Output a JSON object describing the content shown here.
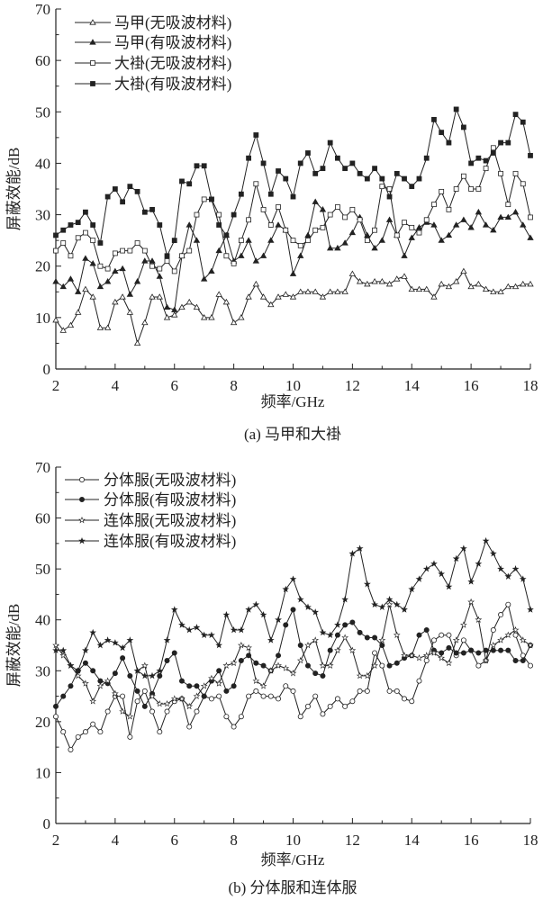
{
  "chart_data": [
    {
      "type": "line",
      "title": "(a) 马甲和大褂",
      "xlabel": "频率/GHz",
      "ylabel": "屏蔽效能/dB",
      "xlim": [
        2,
        18
      ],
      "ylim": [
        0,
        70
      ],
      "xticks": [
        "2",
        "4",
        "6",
        "8",
        "10",
        "12",
        "14",
        "16",
        "18"
      ],
      "yticks": [
        "0",
        "10",
        "20",
        "30",
        "40",
        "50",
        "60",
        "70"
      ],
      "x_spacing": "uniform 0.25 GHz from 2 to 18",
      "legend_position": "top-left",
      "series": [
        {
          "name": "马甲(无吸波材料)",
          "marker": "triangle-open",
          "values": [
            9.5,
            7.5,
            8.5,
            11,
            15.5,
            14,
            8,
            8,
            13,
            14,
            11,
            5,
            9,
            14,
            14,
            10,
            10.5,
            12,
            13,
            12,
            10,
            10,
            14.5,
            13,
            9,
            10,
            14,
            16.5,
            14,
            12.5,
            14,
            14.5,
            14,
            15,
            15,
            15,
            14,
            15,
            15,
            15,
            18.5,
            17,
            16.5,
            17,
            17,
            16.5,
            17.5,
            18,
            15.5,
            15.5,
            15.5,
            14,
            16.5,
            16,
            17,
            19,
            16,
            16.5,
            15.5,
            15,
            15,
            16,
            16,
            16.5,
            16.5
          ]
        },
        {
          "name": "马甲(有吸波材料)",
          "marker": "triangle-filled",
          "values": [
            17,
            16,
            17.5,
            15,
            21.5,
            20.5,
            16,
            17,
            19,
            19.5,
            14.5,
            17,
            21,
            21,
            18,
            12,
            11.5,
            22,
            28,
            25,
            17.5,
            19,
            23,
            26,
            21,
            22,
            25,
            21,
            22,
            25,
            28,
            27,
            18.5,
            22,
            26,
            32.5,
            31,
            23.5,
            23.5,
            24.5,
            26.5,
            29.5,
            26,
            23.5,
            25,
            29,
            26,
            22,
            25.5,
            27.5,
            28.5,
            28,
            25,
            26,
            28,
            29,
            27.5,
            30.5,
            28,
            27,
            29.5,
            29.5,
            30.5,
            28,
            25.5
          ]
        },
        {
          "name": "大褂(无吸波材料)",
          "marker": "square-open",
          "values": [
            23,
            24.5,
            22,
            25.5,
            26.5,
            25,
            20,
            19.5,
            22.5,
            23,
            23,
            24.5,
            23,
            20,
            19.5,
            21,
            19,
            22,
            23,
            30,
            33,
            33,
            30,
            22,
            20.5,
            25,
            29,
            36,
            31,
            28,
            31.5,
            27,
            25,
            24,
            25,
            27,
            27.5,
            30,
            31.5,
            29.5,
            31,
            29,
            25,
            27,
            35.5,
            35,
            26,
            28.5,
            27.5,
            26.5,
            29,
            32,
            34.5,
            31,
            35,
            37.5,
            35,
            35,
            39,
            43,
            38,
            32,
            38,
            36,
            29.5
          ]
        },
        {
          "name": "大褂(有吸波材料)",
          "marker": "square-filled",
          "values": [
            26,
            27,
            28,
            28.5,
            30.5,
            28,
            24.5,
            33.5,
            35,
            32.5,
            35.5,
            34.5,
            30.5,
            31,
            28,
            22,
            25,
            36.5,
            36,
            39.5,
            39.5,
            33,
            28,
            26,
            30,
            34,
            41,
            45.5,
            40,
            34,
            38.5,
            37,
            33.5,
            40,
            42,
            38,
            39,
            44,
            41,
            39,
            40,
            38,
            37,
            39,
            37,
            33.5,
            38,
            37,
            35.5,
            37,
            41,
            48.5,
            46,
            44,
            50.5,
            47,
            40,
            41,
            40.5,
            42,
            44,
            44,
            49.5,
            48,
            41.5
          ]
        }
      ]
    },
    {
      "type": "line",
      "title": "(b) 分体服和连体服",
      "xlabel": "频率/GHz",
      "ylabel": "屏蔽效能/dB",
      "xlim": [
        2,
        18
      ],
      "ylim": [
        0,
        70
      ],
      "xticks": [
        "2",
        "4",
        "6",
        "8",
        "10",
        "12",
        "14",
        "16",
        "18"
      ],
      "yticks": [
        "0",
        "10",
        "20",
        "30",
        "40",
        "50",
        "60",
        "70"
      ],
      "x_spacing": "uniform 0.25 GHz from 2 to 18",
      "legend_position": "top-left",
      "series": [
        {
          "name": "分体服(无吸波材料)",
          "marker": "circle-open",
          "values": [
            21,
            18,
            14.5,
            17,
            18,
            19.5,
            18,
            22,
            25,
            25,
            17,
            24,
            26,
            22,
            18,
            22,
            24,
            24.5,
            19,
            22,
            25,
            24.5,
            25,
            21,
            19,
            21,
            25,
            26,
            25,
            25,
            24.5,
            27,
            26,
            21,
            23,
            25,
            21.5,
            23,
            24.5,
            23,
            24,
            26,
            26,
            33.5,
            31,
            26,
            26,
            24.5,
            24,
            28,
            32,
            36,
            37,
            37,
            33,
            36,
            34,
            31,
            32,
            38,
            41,
            43,
            37,
            33,
            31
          ]
        },
        {
          "name": "分体服(有吸波材料)",
          "marker": "circle-filled",
          "values": [
            23,
            25,
            27,
            30,
            31.5,
            30,
            28,
            27.5,
            29.5,
            32.5,
            29,
            26,
            23,
            25.5,
            29,
            32,
            33.5,
            28,
            27,
            27,
            25,
            28,
            30,
            26,
            27,
            32,
            33,
            31.5,
            31,
            30,
            33,
            39,
            42,
            35,
            31,
            29.5,
            29,
            34,
            37,
            39,
            39.5,
            37.5,
            36.5,
            36.5,
            35,
            31,
            31.5,
            32.5,
            33,
            37,
            38,
            34,
            33.5,
            34.5,
            33.5,
            33.5,
            34,
            33.5,
            34,
            34,
            34,
            34,
            32,
            32,
            35
          ]
        },
        {
          "name": "连体服(无吸波材料)",
          "marker": "star-open",
          "values": [
            35,
            33,
            31,
            29,
            27.5,
            24,
            27,
            28,
            25.5,
            22,
            21,
            30,
            31,
            25,
            23.5,
            23.5,
            24.5,
            24.5,
            23,
            25,
            27,
            28.5,
            27.5,
            31,
            31.5,
            35,
            34.5,
            28,
            27,
            30,
            31,
            30.5,
            29.5,
            32,
            35,
            36,
            31,
            31,
            34,
            36.5,
            34,
            29,
            29,
            31,
            36,
            43,
            37,
            33,
            33,
            32.5,
            33,
            33.5,
            32.5,
            31.5,
            36,
            39,
            43.5,
            40,
            32,
            35,
            36,
            37,
            38,
            36,
            35
          ]
        },
        {
          "name": "连体服(有吸波材料)",
          "marker": "star-filled",
          "values": [
            34,
            34,
            31,
            30,
            34,
            37.5,
            35,
            36,
            35.5,
            34.5,
            36,
            30,
            29,
            29,
            30,
            36,
            42,
            39,
            38,
            38.5,
            37,
            37,
            35,
            41,
            38,
            38,
            42,
            43,
            41,
            36,
            40,
            46,
            48,
            44,
            42.5,
            41.5,
            37.5,
            37,
            39,
            44,
            53,
            54,
            47,
            43,
            42.5,
            44,
            43,
            42,
            46,
            48,
            50,
            51,
            49,
            46.5,
            52,
            54,
            47.5,
            51,
            55.5,
            53,
            50,
            48.5,
            50,
            48,
            42
          ]
        }
      ]
    }
  ],
  "colors": {
    "line": "#222222",
    "axis": "#222222"
  }
}
